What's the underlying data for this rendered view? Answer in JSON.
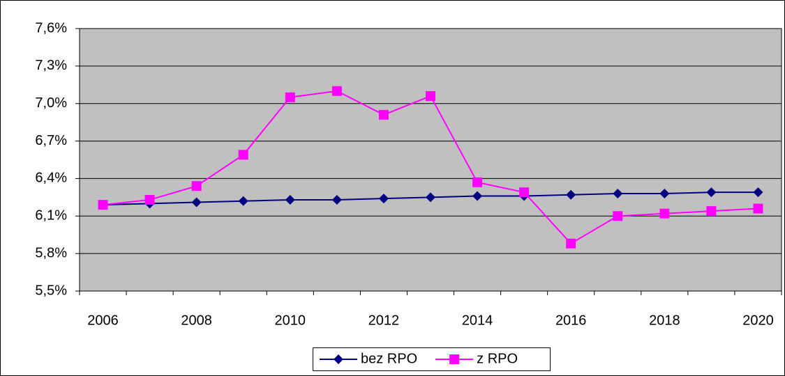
{
  "chart_data": {
    "type": "line",
    "categories": [
      "2006",
      null,
      "2008",
      null,
      "2010",
      null,
      "2012",
      null,
      "2014",
      null,
      "2016",
      null,
      "2018",
      null,
      "2020"
    ],
    "series": [
      {
        "name": "bez RPO",
        "color": "#000080",
        "marker": "diamond",
        "values": [
          6.19,
          6.2,
          6.21,
          6.22,
          6.23,
          6.23,
          6.24,
          6.25,
          6.26,
          6.26,
          6.27,
          6.28,
          6.28,
          6.29,
          6.29
        ]
      },
      {
        "name": "z RPO",
        "color": "#ff00ff",
        "marker": "square",
        "values": [
          6.19,
          6.23,
          6.34,
          6.59,
          7.05,
          7.1,
          6.91,
          7.06,
          6.37,
          6.29,
          5.88,
          6.1,
          6.12,
          6.14,
          6.16
        ]
      }
    ],
    "ylim": [
      5.5,
      7.6
    ],
    "yticks": [
      {
        "value": 5.5,
        "label": "5,5%"
      },
      {
        "value": 5.8,
        "label": "5,8%"
      },
      {
        "value": 6.1,
        "label": "6,1%"
      },
      {
        "value": 6.4,
        "label": "6,4%"
      },
      {
        "value": 6.7,
        "label": "6,7%"
      },
      {
        "value": 7.0,
        "label": "7,0%"
      },
      {
        "value": 7.3,
        "label": "7,3%"
      },
      {
        "value": 7.6,
        "label": "7,6%"
      }
    ],
    "grid": true,
    "legend": "bottom"
  }
}
